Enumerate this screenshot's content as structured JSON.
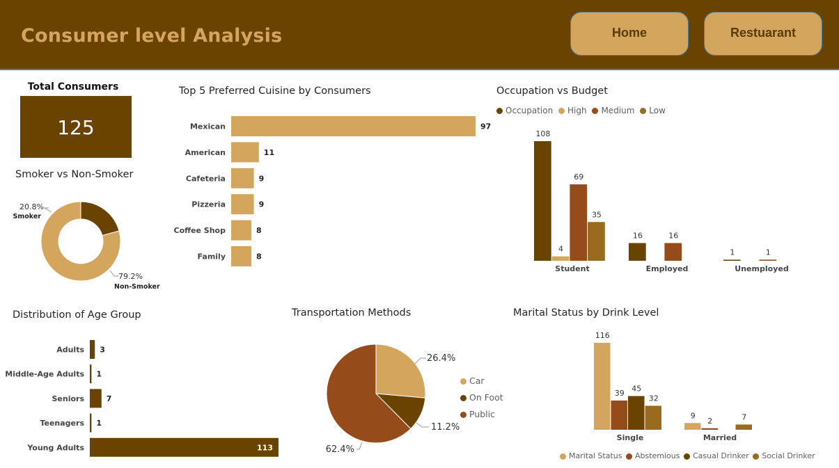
{
  "header": {
    "title": "Consumer level Analysis",
    "nav": [
      {
        "label": "Home"
      },
      {
        "label": "Restuarant"
      }
    ]
  },
  "colors": {
    "dark_brown": "#6b4300",
    "gold": "#d4a55c",
    "rust": "#964b1a",
    "ochre": "#9a6b1f"
  },
  "kpi": {
    "label": "Total Consumers",
    "value": "125"
  },
  "titles": {
    "smoker": "Smoker vs Non-Smoker",
    "cuisine": "Top 5 Preferred Cuisine by Consumers",
    "occupation": "Occupation vs Budget",
    "age": "Distribution of Age Group",
    "transport": "Transportation Methods",
    "marital": "Marital Status by Drink Level"
  },
  "chart_data": [
    {
      "id": "smoker",
      "type": "pie",
      "title": "Smoker vs Non-Smoker",
      "donut": true,
      "labels": [
        "Smoker",
        "Non-Smoker"
      ],
      "values": [
        20.8,
        79.2
      ],
      "value_labels": [
        "20.8%",
        "79.2%"
      ],
      "colors": [
        "#6b4300",
        "#d4a55c"
      ]
    },
    {
      "id": "cuisine",
      "type": "bar",
      "orientation": "horizontal",
      "title": "Top 5 Preferred Cuisine by Consumers",
      "categories": [
        "Mexican",
        "American",
        "Cafeteria",
        "Pizzeria",
        "Coffee Shop",
        "Family"
      ],
      "values": [
        97,
        11,
        9,
        9,
        8,
        8
      ],
      "color": "#d4a55c"
    },
    {
      "id": "occupation",
      "type": "bar",
      "title": "Occupation vs Budget",
      "categories": [
        "Student",
        "Employed",
        "Unemployed"
      ],
      "legend": [
        "Occupation",
        "High",
        "Medium",
        "Low"
      ],
      "legend_colors": [
        "#6b4300",
        "#d4a55c",
        "#964b1a",
        "#9a6b1f"
      ],
      "series": [
        {
          "name": "Occupation",
          "values": [
            108,
            16,
            1
          ],
          "color": "#6b4300"
        },
        {
          "name": "High",
          "values": [
            4,
            null,
            null
          ],
          "color": "#d4a55c"
        },
        {
          "name": "Medium",
          "values": [
            69,
            16,
            1
          ],
          "color": "#964b1a"
        },
        {
          "name": "Low",
          "values": [
            35,
            null,
            null
          ],
          "color": "#9a6b1f"
        }
      ]
    },
    {
      "id": "age",
      "type": "bar",
      "orientation": "horizontal",
      "title": "Distribution of Age Group",
      "categories": [
        "Adults",
        "Middle-Age Adults",
        "Seniors",
        "Teenagers",
        "Young Adults"
      ],
      "values": [
        3,
        1,
        7,
        1,
        113
      ],
      "color": "#6b4300"
    },
    {
      "id": "transport",
      "type": "pie",
      "title": "Transportation Methods",
      "labels": [
        "Car",
        "On Foot",
        "Public"
      ],
      "values": [
        26.4,
        11.2,
        62.4
      ],
      "value_labels": [
        "26.4%",
        "11.2%",
        "62.4%"
      ],
      "colors": [
        "#d4a55c",
        "#6b4300",
        "#964b1a"
      ]
    },
    {
      "id": "marital",
      "type": "bar",
      "title": "Marital Status by Drink Level",
      "categories": [
        "Single",
        "Married"
      ],
      "legend": [
        "Marital Status",
        "Abstemious",
        "Casual Drinker",
        "Social Drinker"
      ],
      "legend_colors": [
        "#d4a55c",
        "#964b1a",
        "#6b4300",
        "#9a6b1f"
      ],
      "series": [
        {
          "name": "Marital Status",
          "values": [
            116,
            9
          ],
          "color": "#d4a55c"
        },
        {
          "name": "Abstemious",
          "values": [
            39,
            2
          ],
          "color": "#964b1a"
        },
        {
          "name": "Casual Drinker",
          "values": [
            45,
            null
          ],
          "color": "#6b4300"
        },
        {
          "name": "Social Drinker",
          "values": [
            32,
            7
          ],
          "color": "#9a6b1f"
        }
      ]
    }
  ]
}
